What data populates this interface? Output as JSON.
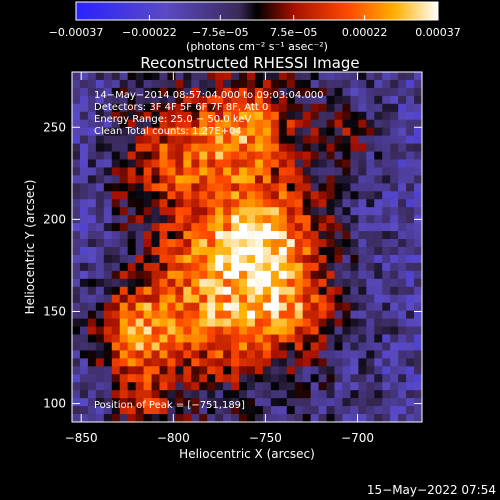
{
  "chart_data": {
    "type": "heatmap",
    "title": "Reconstructed RHESSI Image",
    "xlabel": "Heliocentric X (arcsec)",
    "ylabel": "Heliocentric Y (arcsec)",
    "xlim": [
      -855,
      -665
    ],
    "ylim": [
      90,
      280
    ],
    "xticks": [
      -850,
      -800,
      -750,
      -700
    ],
    "xtick_labels": [
      "−850",
      "−800",
      "−750",
      "−700"
    ],
    "yticks": [
      100,
      150,
      200,
      250
    ],
    "ytick_labels": [
      "100",
      "150",
      "200",
      "250"
    ],
    "colorbar": {
      "min": -0.00037,
      "max": 0.00037,
      "ticks": [
        -0.00037,
        -0.00022,
        -7.5e-05,
        7.5e-05,
        0.00022,
        0.00037
      ],
      "tick_labels": [
        "−0.00037",
        "−0.00022",
        "−7.5e−05",
        "7.5e−05",
        "0.00022",
        "0.00037"
      ],
      "unit_label": "(photons cm⁻² s⁻¹ asec⁻²)"
    },
    "annotations": [
      "14−May−2014 08:57:04.000 to 09:03:04.000",
      "Detectors: 3F 4F 5F 6F 7F 8F, Att 0",
      "Energy Range: 25.0 − 50.0 keV",
      "Clean     Total counts: 1.27E+04",
      "Position of Peak = [−751,189]"
    ],
    "peak": {
      "x": -751,
      "y": 189
    },
    "colors": {
      "background": "#000000",
      "text": "#ffffff"
    }
  },
  "footer": {
    "timestamp": "15−May−2022 07:54"
  }
}
